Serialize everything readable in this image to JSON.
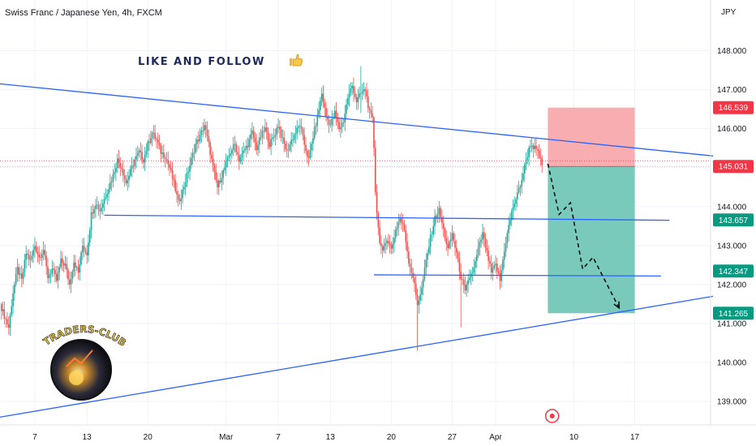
{
  "header": {
    "title": "Swiss Franc / Japanese Yen, 4h, FXCM",
    "currency": "JPY"
  },
  "promo": {
    "text": "LIKE AND FOLLOW",
    "thumb_icon": "thumbs-up-icon"
  },
  "logo": {
    "text": "TRADERS-CLUB"
  },
  "colors": {
    "up": "#26a69a",
    "down": "#ef5350",
    "trend": "#2962ff",
    "stop_zone": "#f7a4a8",
    "target_zone": "#73c7b8",
    "tag_red": "#f23645",
    "tag_green": "#089981"
  },
  "chart_data": {
    "type": "candlestick",
    "interval": "4h",
    "ylim": [
      138.4,
      149.3
    ],
    "y_ticks": [
      139.0,
      140.0,
      141.0,
      142.0,
      143.0,
      144.0,
      145.0,
      146.0,
      147.0,
      148.0
    ],
    "x_ticks": [
      {
        "label": "7",
        "day": 7
      },
      {
        "label": "13",
        "day": 13
      },
      {
        "label": "20",
        "day": 20
      },
      {
        "label": "Mar",
        "day": 29
      },
      {
        "label": "7",
        "day": 35
      },
      {
        "label": "13",
        "day": 41
      },
      {
        "label": "20",
        "day": 48
      },
      {
        "label": "27",
        "day": 55
      },
      {
        "label": "Apr",
        "day": 60
      },
      {
        "label": "10",
        "day": 69
      },
      {
        "label": "17",
        "day": 76
      }
    ],
    "day_range": [
      3,
      85
    ],
    "path": [
      [
        3.0,
        141.5
      ],
      [
        3.5,
        141.2
      ],
      [
        4.0,
        140.9
      ],
      [
        4.5,
        141.8
      ],
      [
        5.0,
        142.4
      ],
      [
        5.5,
        142.1
      ],
      [
        6.0,
        142.8
      ],
      [
        6.5,
        142.6
      ],
      [
        7.0,
        143.0
      ],
      [
        7.5,
        142.7
      ],
      [
        8.0,
        142.9
      ],
      [
        8.5,
        142.2
      ],
      [
        9.0,
        142.4
      ],
      [
        9.5,
        142.1
      ],
      [
        10.0,
        142.6
      ],
      [
        10.5,
        142.5
      ],
      [
        11.0,
        142.0
      ],
      [
        11.5,
        142.6
      ],
      [
        12.0,
        142.3
      ],
      [
        12.5,
        143.0
      ],
      [
        13.0,
        142.8
      ],
      [
        13.5,
        143.8
      ],
      [
        14.0,
        144.1
      ],
      [
        14.5,
        143.9
      ],
      [
        15.0,
        144.2
      ],
      [
        15.5,
        144.5
      ],
      [
        16.0,
        144.8
      ],
      [
        16.5,
        145.2
      ],
      [
        17.0,
        145.0
      ],
      [
        17.5,
        144.6
      ],
      [
        18.0,
        144.9
      ],
      [
        18.5,
        145.2
      ],
      [
        19.0,
        145.4
      ],
      [
        19.5,
        145.2
      ],
      [
        20.0,
        145.6
      ],
      [
        20.5,
        145.9
      ],
      [
        21.0,
        145.7
      ],
      [
        21.5,
        145.4
      ],
      [
        22.0,
        145.3
      ],
      [
        22.5,
        145.0
      ],
      [
        23.0,
        144.6
      ],
      [
        23.5,
        144.1
      ],
      [
        24.0,
        144.4
      ],
      [
        24.5,
        144.8
      ],
      [
        25.0,
        145.2
      ],
      [
        25.5,
        145.6
      ],
      [
        26.0,
        145.8
      ],
      [
        26.5,
        146.1
      ],
      [
        27.0,
        145.6
      ],
      [
        27.5,
        145.0
      ],
      [
        28.0,
        144.5
      ],
      [
        28.5,
        144.8
      ],
      [
        29.0,
        145.1
      ],
      [
        29.5,
        145.4
      ],
      [
        30.0,
        145.6
      ],
      [
        30.5,
        145.2
      ],
      [
        31.0,
        145.4
      ],
      [
        31.5,
        145.6
      ],
      [
        32.0,
        145.9
      ],
      [
        32.5,
        145.5
      ],
      [
        33.0,
        145.8
      ],
      [
        33.5,
        146.0
      ],
      [
        34.0,
        145.6
      ],
      [
        34.5,
        145.8
      ],
      [
        35.0,
        146.1
      ],
      [
        35.5,
        145.7
      ],
      [
        36.0,
        145.4
      ],
      [
        36.5,
        145.7
      ],
      [
        37.0,
        145.9
      ],
      [
        37.5,
        146.1
      ],
      [
        38.0,
        145.6
      ],
      [
        38.5,
        145.2
      ],
      [
        39.0,
        145.8
      ],
      [
        39.5,
        146.3
      ],
      [
        40.0,
        146.9
      ],
      [
        40.5,
        146.3
      ],
      [
        41.0,
        146.1
      ],
      [
        41.5,
        146.4
      ],
      [
        42.0,
        146.0
      ],
      [
        42.5,
        146.2
      ],
      [
        43.0,
        146.8
      ],
      [
        43.5,
        147.1
      ],
      [
        44.0,
        146.7
      ],
      [
        44.5,
        146.9
      ],
      [
        45.0,
        147.0
      ],
      [
        45.5,
        146.4
      ],
      [
        45.9,
        146.2
      ],
      [
        46.2,
        144.2
      ],
      [
        46.6,
        143.2
      ],
      [
        47.0,
        142.8
      ],
      [
        47.5,
        143.2
      ],
      [
        48.0,
        142.9
      ],
      [
        48.5,
        143.4
      ],
      [
        49.0,
        143.7
      ],
      [
        49.5,
        143.4
      ],
      [
        50.0,
        142.6
      ],
      [
        50.5,
        142.2
      ],
      [
        51.0,
        141.5
      ],
      [
        51.5,
        141.9
      ],
      [
        52.0,
        142.6
      ],
      [
        52.5,
        143.2
      ],
      [
        53.0,
        143.7
      ],
      [
        53.5,
        143.9
      ],
      [
        54.0,
        143.4
      ],
      [
        54.5,
        142.9
      ],
      [
        55.0,
        143.3
      ],
      [
        55.5,
        142.8
      ],
      [
        56.0,
        142.2
      ],
      [
        56.5,
        141.8
      ],
      [
        57.0,
        142.2
      ],
      [
        57.5,
        142.4
      ],
      [
        58.0,
        142.9
      ],
      [
        58.5,
        143.3
      ],
      [
        59.0,
        142.8
      ],
      [
        59.5,
        142.3
      ],
      [
        60.0,
        142.5
      ],
      [
        60.5,
        142.1
      ],
      [
        61.0,
        142.9
      ],
      [
        61.5,
        143.5
      ],
      [
        62.0,
        144.0
      ],
      [
        62.5,
        144.3
      ],
      [
        63.0,
        144.7
      ],
      [
        63.5,
        145.2
      ],
      [
        64.0,
        145.6
      ],
      [
        64.5,
        145.5
      ],
      [
        65.0,
        145.3
      ],
      [
        65.4,
        145.0
      ]
    ],
    "high_lows": [
      {
        "day": 44.5,
        "low": 146.4,
        "high": 147.6
      },
      {
        "day": 51.0,
        "low": 140.3,
        "high": 141.9
      },
      {
        "day": 56.0,
        "low": 140.9,
        "high": 142.3
      }
    ],
    "trend_lines": [
      {
        "name": "upper-resistance",
        "points": [
          [
            3,
            147.15
          ],
          [
            85,
            145.3
          ]
        ]
      },
      {
        "name": "mid-support",
        "points": [
          [
            15,
            143.78
          ],
          [
            80,
            143.65
          ]
        ]
      },
      {
        "name": "lower-support",
        "points": [
          [
            46,
            142.25
          ],
          [
            79,
            142.22
          ]
        ]
      },
      {
        "name": "ascending-support",
        "points": [
          [
            3,
            138.6
          ],
          [
            85,
            141.7
          ]
        ]
      }
    ],
    "position": {
      "type": "short",
      "entry": 145.031,
      "stop": 146.539,
      "target": 141.265,
      "day_start": 66.0,
      "day_end": 76.0
    },
    "projection": [
      [
        66.0,
        145.1
      ],
      [
        67.3,
        143.8
      ],
      [
        68.6,
        144.1
      ],
      [
        70.0,
        142.4
      ],
      [
        71.2,
        142.7
      ],
      [
        74.2,
        141.4
      ]
    ],
    "price_tags": [
      {
        "value": 146.539,
        "label": "146.539",
        "color": "red"
      },
      {
        "value": 145.031,
        "label": "145.031",
        "color": "red"
      },
      {
        "value": 143.657,
        "label": "143.657",
        "color": "green"
      },
      {
        "value": 142.347,
        "label": "142.347",
        "color": "green"
      },
      {
        "value": 141.265,
        "label": "141.265",
        "color": "green"
      }
    ],
    "event_marker_day": 66.5
  }
}
